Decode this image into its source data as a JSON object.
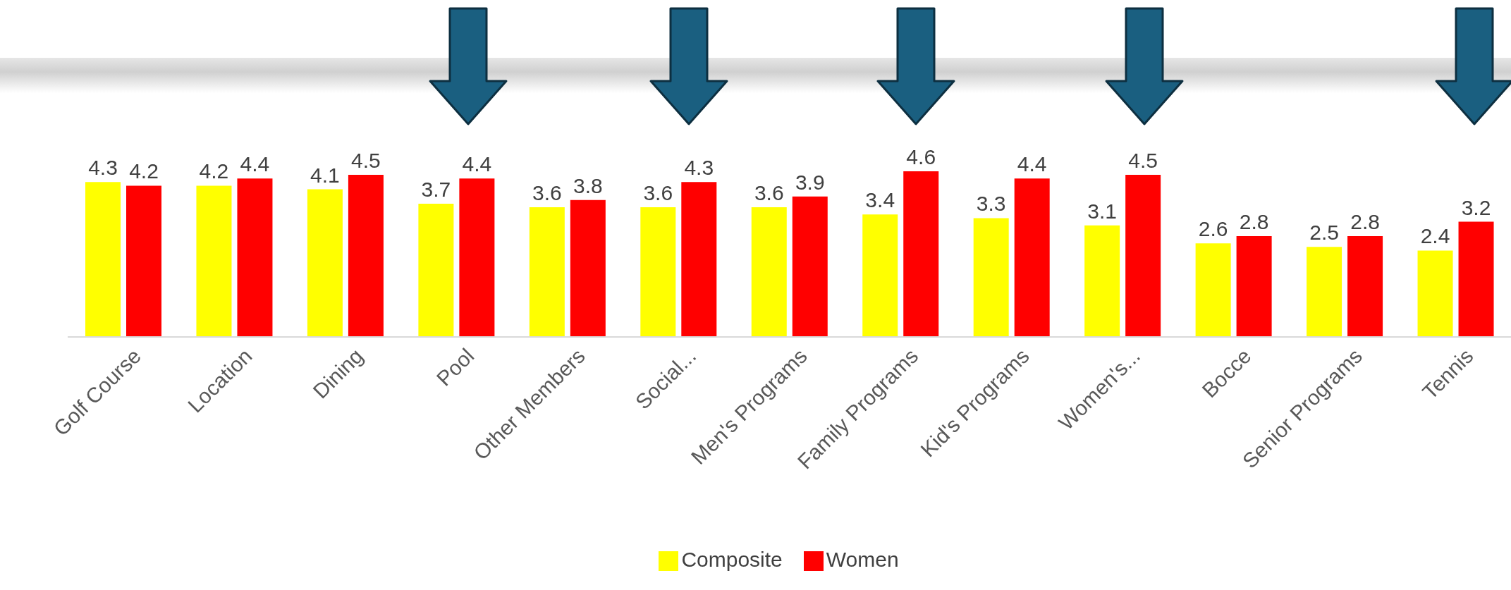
{
  "chart_data": {
    "type": "bar",
    "categories": [
      "Golf Course",
      "Location",
      "Dining",
      "Pool",
      "Other Members",
      "Social...",
      "Men's Programs",
      "Family Programs",
      "Kid's Programs",
      "Women's...",
      "Bocce",
      "Senior Programs",
      "Tennis"
    ],
    "series": [
      {
        "name": "Composite",
        "color": "#ffff00",
        "values": [
          4.3,
          4.2,
          4.1,
          3.7,
          3.6,
          3.6,
          3.6,
          3.4,
          3.3,
          3.1,
          2.6,
          2.5,
          2.4
        ]
      },
      {
        "name": "Women",
        "color": "#ff0000",
        "values": [
          4.2,
          4.4,
          4.5,
          4.4,
          3.8,
          4.3,
          3.9,
          4.6,
          4.4,
          4.5,
          2.8,
          2.8,
          3.2
        ]
      }
    ],
    "data_labels": true,
    "legend": "bottom",
    "grid": false
  }
}
